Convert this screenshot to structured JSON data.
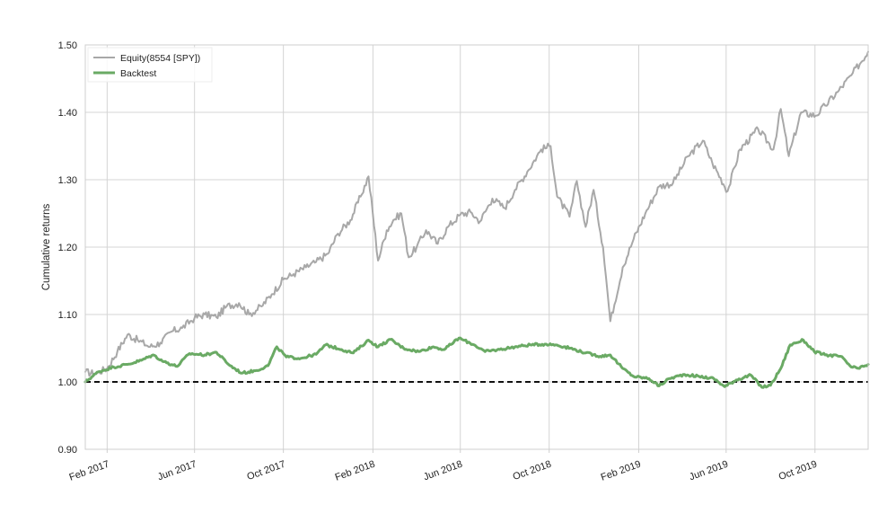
{
  "chart_data": {
    "type": "line",
    "title": "",
    "xlabel": "",
    "ylabel": "Cumulative returns",
    "ylim": [
      0.9,
      1.5
    ],
    "yticks": [
      "0.90",
      "1.00",
      "1.10",
      "1.20",
      "1.30",
      "1.40",
      "1.50"
    ],
    "xlim": [
      "2017-01-02",
      "2019-12-13"
    ],
    "xticks": [
      {
        "date": "2017-02-01",
        "label": "Feb 2017"
      },
      {
        "date": "2017-06-01",
        "label": "Jun 2017"
      },
      {
        "date": "2017-10-01",
        "label": "Oct 2017"
      },
      {
        "date": "2018-02-01",
        "label": "Feb 2018"
      },
      {
        "date": "2018-06-01",
        "label": "Jun 2018"
      },
      {
        "date": "2018-10-01",
        "label": "Oct 2018"
      },
      {
        "date": "2019-02-01",
        "label": "Feb 2019"
      },
      {
        "date": "2019-06-01",
        "label": "Jun 2019"
      },
      {
        "date": "2019-10-01",
        "label": "Oct 2019"
      }
    ],
    "grid": true,
    "legend": "top-left",
    "baseline": 1.0,
    "series": [
      {
        "name": "Equity(8554 [SPY])",
        "color": "#a8a8a8",
        "points": [
          [
            "2017-01-02",
            1.015
          ],
          [
            "2017-01-15",
            1.012
          ],
          [
            "2017-02-01",
            1.02
          ],
          [
            "2017-02-15",
            1.045
          ],
          [
            "2017-03-01",
            1.07
          ],
          [
            "2017-03-15",
            1.062
          ],
          [
            "2017-04-01",
            1.052
          ],
          [
            "2017-04-15",
            1.058
          ],
          [
            "2017-05-01",
            1.075
          ],
          [
            "2017-05-15",
            1.08
          ],
          [
            "2017-06-01",
            1.095
          ],
          [
            "2017-06-15",
            1.1
          ],
          [
            "2017-07-01",
            1.096
          ],
          [
            "2017-07-15",
            1.112
          ],
          [
            "2017-08-01",
            1.117
          ],
          [
            "2017-08-15",
            1.1
          ],
          [
            "2017-09-01",
            1.112
          ],
          [
            "2017-09-15",
            1.13
          ],
          [
            "2017-10-01",
            1.152
          ],
          [
            "2017-10-15",
            1.16
          ],
          [
            "2017-11-01",
            1.17
          ],
          [
            "2017-11-15",
            1.178
          ],
          [
            "2017-12-01",
            1.19
          ],
          [
            "2017-12-15",
            1.22
          ],
          [
            "2018-01-01",
            1.24
          ],
          [
            "2018-01-15",
            1.275
          ],
          [
            "2018-01-26",
            1.305
          ],
          [
            "2018-02-08",
            1.18
          ],
          [
            "2018-02-20",
            1.225
          ],
          [
            "2018-03-01",
            1.24
          ],
          [
            "2018-03-12",
            1.25
          ],
          [
            "2018-03-22",
            1.185
          ],
          [
            "2018-04-02",
            1.2
          ],
          [
            "2018-04-15",
            1.225
          ],
          [
            "2018-05-01",
            1.205
          ],
          [
            "2018-05-15",
            1.23
          ],
          [
            "2018-06-01",
            1.248
          ],
          [
            "2018-06-15",
            1.252
          ],
          [
            "2018-06-28",
            1.238
          ],
          [
            "2018-07-15",
            1.272
          ],
          [
            "2018-08-01",
            1.258
          ],
          [
            "2018-08-15",
            1.285
          ],
          [
            "2018-09-01",
            1.312
          ],
          [
            "2018-09-20",
            1.345
          ],
          [
            "2018-10-03",
            1.35
          ],
          [
            "2018-10-12",
            1.275
          ],
          [
            "2018-10-29",
            1.245
          ],
          [
            "2018-11-08",
            1.298
          ],
          [
            "2018-11-20",
            1.23
          ],
          [
            "2018-12-01",
            1.285
          ],
          [
            "2018-12-14",
            1.2
          ],
          [
            "2018-12-24",
            1.09
          ],
          [
            "2019-01-10",
            1.17
          ],
          [
            "2019-01-25",
            1.212
          ],
          [
            "2019-02-10",
            1.25
          ],
          [
            "2019-03-01",
            1.29
          ],
          [
            "2019-03-20",
            1.295
          ],
          [
            "2019-04-10",
            1.335
          ],
          [
            "2019-04-30",
            1.358
          ],
          [
            "2019-05-13",
            1.325
          ],
          [
            "2019-06-03",
            1.283
          ],
          [
            "2019-06-20",
            1.345
          ],
          [
            "2019-07-15",
            1.375
          ],
          [
            "2019-08-05",
            1.345
          ],
          [
            "2019-08-15",
            1.405
          ],
          [
            "2019-08-26",
            1.335
          ],
          [
            "2019-09-12",
            1.4
          ],
          [
            "2019-10-02",
            1.395
          ],
          [
            "2019-10-15",
            1.41
          ],
          [
            "2019-11-01",
            1.43
          ],
          [
            "2019-11-20",
            1.455
          ],
          [
            "2019-12-13",
            1.49
          ]
        ]
      },
      {
        "name": "Backtest",
        "color": "#6aaa64",
        "points": [
          [
            "2017-01-02",
            1.0
          ],
          [
            "2017-01-20",
            1.015
          ],
          [
            "2017-02-10",
            1.022
          ],
          [
            "2017-03-01",
            1.026
          ],
          [
            "2017-03-20",
            1.032
          ],
          [
            "2017-04-05",
            1.04
          ],
          [
            "2017-04-20",
            1.03
          ],
          [
            "2017-05-08",
            1.023
          ],
          [
            "2017-05-25",
            1.042
          ],
          [
            "2017-06-15",
            1.04
          ],
          [
            "2017-07-01",
            1.044
          ],
          [
            "2017-07-20",
            1.024
          ],
          [
            "2017-08-05",
            1.013
          ],
          [
            "2017-08-25",
            1.017
          ],
          [
            "2017-09-10",
            1.024
          ],
          [
            "2017-09-22",
            1.052
          ],
          [
            "2017-10-05",
            1.037
          ],
          [
            "2017-10-25",
            1.035
          ],
          [
            "2017-11-15",
            1.041
          ],
          [
            "2017-11-28",
            1.055
          ],
          [
            "2017-12-20",
            1.048
          ],
          [
            "2018-01-05",
            1.043
          ],
          [
            "2018-01-26",
            1.062
          ],
          [
            "2018-02-08",
            1.052
          ],
          [
            "2018-02-25",
            1.063
          ],
          [
            "2018-03-15",
            1.05
          ],
          [
            "2018-04-05",
            1.045
          ],
          [
            "2018-04-25",
            1.052
          ],
          [
            "2018-05-10",
            1.048
          ],
          [
            "2018-05-30",
            1.065
          ],
          [
            "2018-06-20",
            1.055
          ],
          [
            "2018-07-05",
            1.045
          ],
          [
            "2018-07-25",
            1.048
          ],
          [
            "2018-08-15",
            1.052
          ],
          [
            "2018-09-05",
            1.055
          ],
          [
            "2018-09-25",
            1.056
          ],
          [
            "2018-10-10",
            1.055
          ],
          [
            "2018-10-30",
            1.05
          ],
          [
            "2018-11-20",
            1.043
          ],
          [
            "2018-12-10",
            1.038
          ],
          [
            "2018-12-24",
            1.04
          ],
          [
            "2019-01-10",
            1.02
          ],
          [
            "2019-01-25",
            1.008
          ],
          [
            "2019-02-15",
            1.005
          ],
          [
            "2019-03-01",
            0.994
          ],
          [
            "2019-03-15",
            1.005
          ],
          [
            "2019-04-05",
            1.011
          ],
          [
            "2019-04-25",
            1.008
          ],
          [
            "2019-05-15",
            1.005
          ],
          [
            "2019-05-30",
            0.993
          ],
          [
            "2019-06-15",
            1.003
          ],
          [
            "2019-07-05",
            1.01
          ],
          [
            "2019-07-20",
            0.992
          ],
          [
            "2019-08-01",
            0.995
          ],
          [
            "2019-08-15",
            1.02
          ],
          [
            "2019-08-28",
            1.055
          ],
          [
            "2019-09-15",
            1.062
          ],
          [
            "2019-09-30",
            1.045
          ],
          [
            "2019-10-15",
            1.04
          ],
          [
            "2019-11-05",
            1.038
          ],
          [
            "2019-11-20",
            1.022
          ],
          [
            "2019-12-01",
            1.02
          ],
          [
            "2019-12-13",
            1.026
          ]
        ]
      }
    ]
  }
}
